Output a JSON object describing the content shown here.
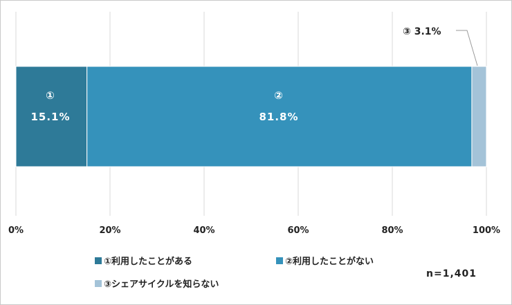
{
  "chart_data": {
    "type": "bar",
    "orientation": "horizontal-stacked",
    "series": [
      {
        "name": "①利用したことがある",
        "values": [
          15.1
        ],
        "bar_number": "①",
        "color": "#2e7a98"
      },
      {
        "name": "②利用したことがない",
        "values": [
          81.8
        ],
        "bar_number": "②",
        "color": "#3592bb"
      },
      {
        "name": "③シェアサイクルを知らない",
        "values": [
          3.1
        ],
        "bar_number": "③",
        "color": "#a4c3d8"
      }
    ],
    "x_ticks": [
      "0%",
      "20%",
      "40%",
      "60%",
      "80%",
      "100%"
    ],
    "xlim": [
      0,
      100
    ],
    "grid": true,
    "legend_position": "bottom",
    "labels": {
      "seg1_number": "①",
      "seg1_value": "15.1%",
      "seg2_number": "②",
      "seg2_value": "81.8%",
      "seg3_callout": "③ 3.1%"
    },
    "note": "n=1,401"
  }
}
